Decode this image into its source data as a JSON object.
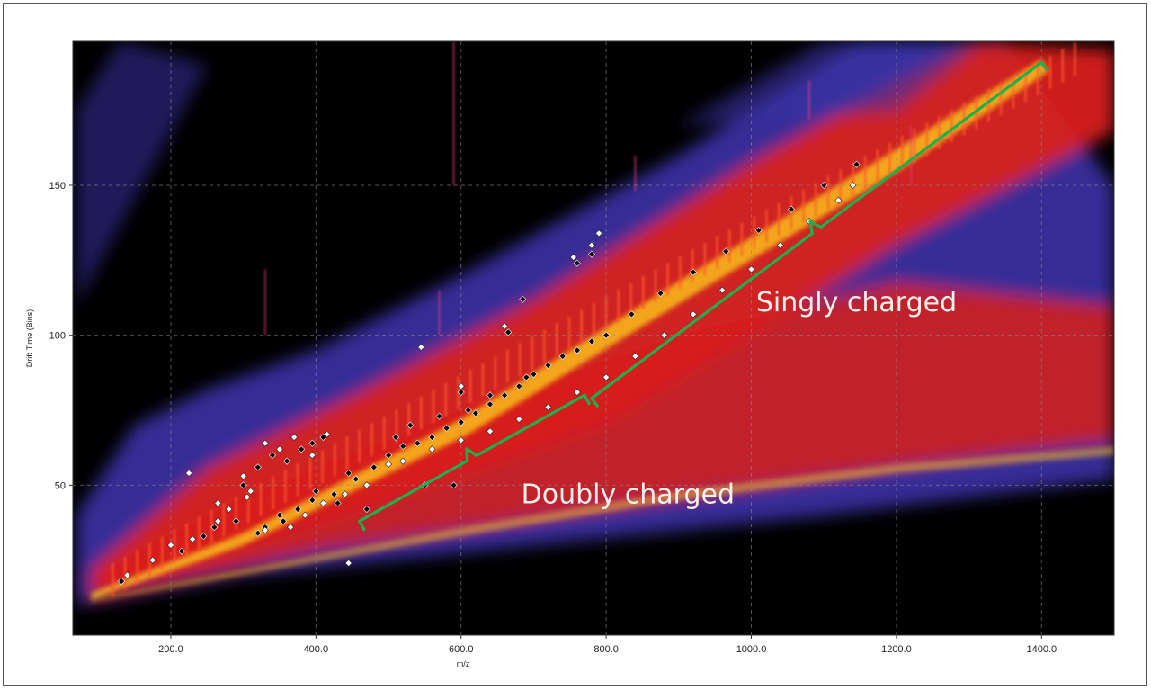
{
  "chart_data": {
    "type": "heatmap",
    "title": "",
    "xlabel": "m/z",
    "ylabel": "Drift Time (Bins)",
    "xlim": [
      65,
      1500
    ],
    "ylim": [
      0,
      198
    ],
    "x_ticks": [
      {
        "value": 200,
        "label": "200.0"
      },
      {
        "value": 400,
        "label": "400.0"
      },
      {
        "value": 600,
        "label": "600.0"
      },
      {
        "value": 800,
        "label": "800.0"
      },
      {
        "value": 1000,
        "label": "1000.0"
      },
      {
        "value": 1200,
        "label": "1200.0"
      },
      {
        "value": 1400,
        "label": "1400.0"
      }
    ],
    "y_ticks": [
      {
        "value": 50,
        "label": "50"
      },
      {
        "value": 100,
        "label": "100"
      },
      {
        "value": 150,
        "label": "150"
      }
    ],
    "grid": true,
    "colors": {
      "background": "#000000",
      "low": "#3b32a6",
      "mid": "#d8201a",
      "high": "#ffd21a",
      "bracket": "#1cb04c"
    },
    "annotations": [
      {
        "text": "Singly charged",
        "x": 1145,
        "y": 108
      },
      {
        "text": "Doubly charged",
        "x": 830,
        "y": 44
      }
    ],
    "brackets": [
      {
        "name": "singly-charged-range",
        "x_start": 780,
        "x_end": 1400,
        "y_start": 79,
        "y_end": 191
      },
      {
        "name": "doubly-charged-range",
        "x_start": 460,
        "x_end": 770,
        "y_start": 38,
        "y_end": 80
      }
    ],
    "series": [
      {
        "marker": "black",
        "points": [
          [
            132,
            18
          ],
          [
            215,
            28
          ],
          [
            245,
            33
          ],
          [
            260,
            36
          ],
          [
            290,
            38
          ],
          [
            330,
            36
          ],
          [
            350,
            40
          ],
          [
            375,
            42
          ],
          [
            395,
            45
          ],
          [
            425,
            47
          ],
          [
            455,
            52
          ],
          [
            480,
            56
          ],
          [
            500,
            60
          ],
          [
            520,
            63
          ],
          [
            540,
            64
          ],
          [
            560,
            66
          ],
          [
            580,
            69
          ],
          [
            600,
            71
          ],
          [
            620,
            74
          ],
          [
            640,
            77
          ],
          [
            660,
            80
          ],
          [
            680,
            83
          ],
          [
            700,
            87
          ],
          [
            720,
            90
          ],
          [
            740,
            93
          ],
          [
            760,
            95
          ],
          [
            780,
            98
          ],
          [
            800,
            100
          ],
          [
            835,
            107
          ],
          [
            875,
            114
          ],
          [
            920,
            121
          ],
          [
            965,
            128
          ],
          [
            1010,
            135
          ],
          [
            1055,
            142
          ],
          [
            1100,
            150
          ],
          [
            1145,
            157
          ],
          [
            300,
            50
          ],
          [
            320,
            56
          ],
          [
            340,
            60
          ],
          [
            360,
            58
          ],
          [
            380,
            62
          ],
          [
            395,
            64
          ],
          [
            410,
            66
          ],
          [
            430,
            44
          ],
          [
            470,
            42
          ],
          [
            550,
            50
          ],
          [
            590,
            50
          ],
          [
            600,
            81
          ],
          [
            665,
            101
          ],
          [
            685,
            112
          ],
          [
            760,
            124
          ],
          [
            780,
            127
          ],
          [
            320,
            34
          ],
          [
            355,
            38
          ],
          [
            400,
            48
          ],
          [
            445,
            54
          ],
          [
            510,
            66
          ],
          [
            530,
            70
          ],
          [
            570,
            73
          ],
          [
            610,
            75
          ],
          [
            640,
            80
          ],
          [
            690,
            86
          ]
        ]
      },
      {
        "marker": "white",
        "points": [
          [
            140,
            20
          ],
          [
            175,
            25
          ],
          [
            200,
            30
          ],
          [
            230,
            32
          ],
          [
            265,
            38
          ],
          [
            280,
            42
          ],
          [
            305,
            46
          ],
          [
            330,
            35
          ],
          [
            365,
            36
          ],
          [
            385,
            40
          ],
          [
            410,
            44
          ],
          [
            440,
            47
          ],
          [
            470,
            50
          ],
          [
            500,
            57
          ],
          [
            520,
            58
          ],
          [
            560,
            62
          ],
          [
            600,
            65
          ],
          [
            640,
            68
          ],
          [
            680,
            72
          ],
          [
            720,
            76
          ],
          [
            760,
            81
          ],
          [
            800,
            86
          ],
          [
            840,
            93
          ],
          [
            880,
            100
          ],
          [
            920,
            107
          ],
          [
            960,
            115
          ],
          [
            1000,
            122
          ],
          [
            1040,
            130
          ],
          [
            1080,
            138
          ],
          [
            1120,
            145
          ],
          [
            1140,
            150
          ],
          [
            545,
            96
          ],
          [
            600,
            83
          ],
          [
            660,
            103
          ],
          [
            755,
            126
          ],
          [
            780,
            130
          ],
          [
            790,
            134
          ],
          [
            330,
            64
          ],
          [
            350,
            62
          ],
          [
            370,
            66
          ],
          [
            395,
            60
          ],
          [
            415,
            67
          ],
          [
            225,
            54
          ],
          [
            265,
            44
          ],
          [
            445,
            24
          ],
          [
            300,
            53
          ],
          [
            310,
            48
          ]
        ]
      }
    ]
  }
}
